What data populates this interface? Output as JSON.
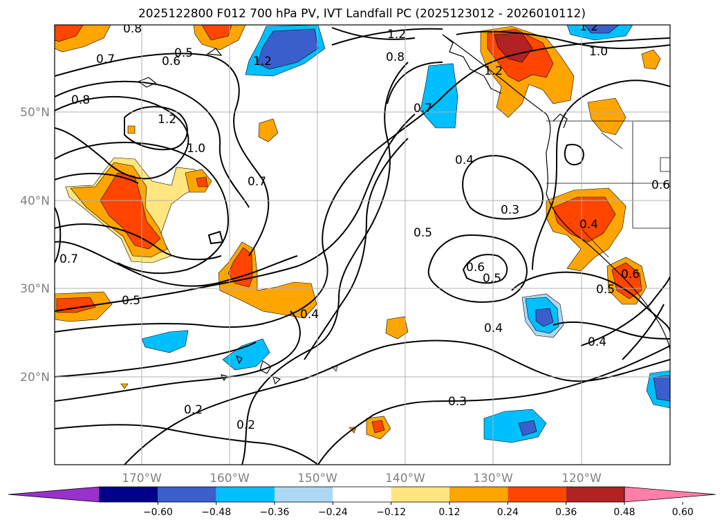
{
  "title": "2025122800 F012 700 hPa PV, IVT Landfall PC (2025123012 - 2026010112)",
  "lat_labels": [
    "50°N",
    "40°N",
    "30°N",
    "20°N"
  ],
  "lon_labels": [
    "170°W",
    "160°W",
    "150°W",
    "140°W",
    "130°W",
    "120°W"
  ],
  "colorbar": {
    "ticks": [
      "−0.60",
      "−0.48",
      "−0.36",
      "−0.24",
      "−0.12",
      "0.12",
      "0.24",
      "0.36",
      "0.48",
      "0.60"
    ],
    "colors": [
      "#9932cc",
      "#00008b",
      "#3a5fcd",
      "#00bfff",
      "#add8f5",
      "#ffffff",
      "#ffe680",
      "#ffa500",
      "#ff4500",
      "#b22222",
      "#ff7fa8"
    ]
  },
  "contour_labels": [
    {
      "text": "0.8"
    },
    {
      "text": "0.7"
    },
    {
      "text": "0.5"
    },
    {
      "text": "0.6"
    },
    {
      "text": "1.2"
    },
    {
      "text": "1.2"
    },
    {
      "text": "1.2"
    },
    {
      "text": "0.8"
    },
    {
      "text": "1.2"
    },
    {
      "text": "1.0"
    },
    {
      "text": "0.8"
    },
    {
      "text": "1.2"
    },
    {
      "text": "1.0"
    },
    {
      "text": "0.7"
    },
    {
      "text": "0.7"
    },
    {
      "text": "0.4"
    },
    {
      "text": "0.3"
    },
    {
      "text": "0.5"
    },
    {
      "text": "0.4"
    },
    {
      "text": "0.6"
    },
    {
      "text": "0.5"
    },
    {
      "text": "0.5"
    },
    {
      "text": "0.4"
    },
    {
      "text": "0.4"
    },
    {
      "text": "0.5"
    },
    {
      "text": "0.6"
    },
    {
      "text": "0.4"
    },
    {
      "text": "0.2"
    },
    {
      "text": "0.2"
    },
    {
      "text": "0.3"
    },
    {
      "text": "0.7"
    },
    {
      "text": "0.6"
    }
  ]
}
